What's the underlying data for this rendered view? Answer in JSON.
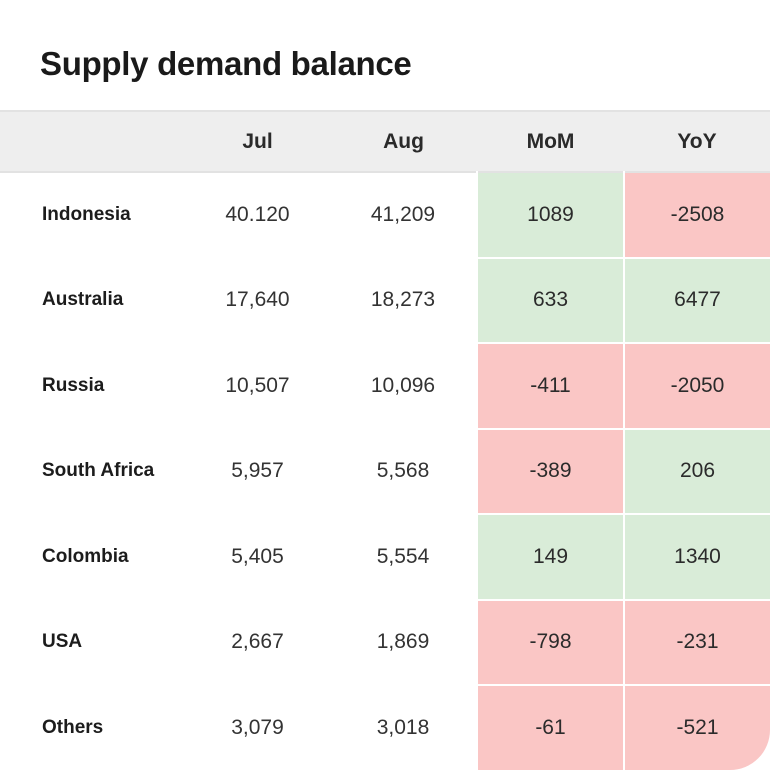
{
  "title": "Supply demand balance",
  "chart_data": {
    "type": "table",
    "title": "Supply demand balance",
    "columns": [
      "",
      "Jul",
      "Aug",
      "MoM",
      "YoY"
    ],
    "rows": [
      {
        "country": "Indonesia",
        "jul": "40.120",
        "aug": "41,209",
        "mom": "1089",
        "yoy": "-2508"
      },
      {
        "country": "Australia",
        "jul": "17,640",
        "aug": "18,273",
        "mom": "633",
        "yoy": "6477"
      },
      {
        "country": "Russia",
        "jul": "10,507",
        "aug": "10,096",
        "mom": "-411",
        "yoy": "-2050"
      },
      {
        "country": "South Africa",
        "jul": "5,957",
        "aug": "5,568",
        "mom": "-389",
        "yoy": "206"
      },
      {
        "country": "Colombia",
        "jul": "5,405",
        "aug": "5,554",
        "mom": "149",
        "yoy": "1340"
      },
      {
        "country": "USA",
        "jul": "2,667",
        "aug": "1,869",
        "mom": "-798",
        "yoy": "-231"
      },
      {
        "country": "Others",
        "jul": "3,079",
        "aug": "3,018",
        "mom": "-61",
        "yoy": "-521"
      }
    ],
    "colors": {
      "positive": "#d9ecd8",
      "negative": "#fac6c5",
      "header": "#eeeeee"
    }
  }
}
